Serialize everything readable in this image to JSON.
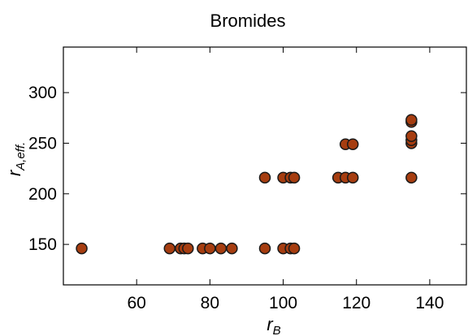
{
  "chart_data": {
    "type": "scatter",
    "title": "Bromides",
    "xlabel": "r_B",
    "xlabel_main": "r",
    "xlabel_sub": "B",
    "ylabel": "r_A,eff.",
    "ylabel_main": "r",
    "ylabel_sub": "A,eff.",
    "xlim": [
      40,
      150
    ],
    "ylim": [
      110,
      345
    ],
    "xticks": [
      60,
      80,
      100,
      120,
      140
    ],
    "yticks": [
      150,
      200,
      250,
      300
    ],
    "xtick_labels": [
      "60",
      "80",
      "100",
      "120",
      "140"
    ],
    "ytick_labels": [
      "150",
      "200",
      "250",
      "300"
    ],
    "grid": false,
    "legend": "none",
    "marker_color": "#A63D10",
    "marker_edge": "#1a1a1a",
    "points": [
      {
        "x": 45,
        "y": 146
      },
      {
        "x": 69,
        "y": 146
      },
      {
        "x": 72,
        "y": 146
      },
      {
        "x": 73,
        "y": 146
      },
      {
        "x": 74,
        "y": 146
      },
      {
        "x": 78,
        "y": 146
      },
      {
        "x": 80,
        "y": 146
      },
      {
        "x": 83,
        "y": 146
      },
      {
        "x": 86,
        "y": 146
      },
      {
        "x": 95,
        "y": 146
      },
      {
        "x": 100,
        "y": 146
      },
      {
        "x": 102,
        "y": 146
      },
      {
        "x": 103,
        "y": 146
      },
      {
        "x": 95,
        "y": 216
      },
      {
        "x": 100,
        "y": 216
      },
      {
        "x": 102,
        "y": 216
      },
      {
        "x": 103,
        "y": 216
      },
      {
        "x": 115,
        "y": 216
      },
      {
        "x": 117,
        "y": 216
      },
      {
        "x": 119,
        "y": 216
      },
      {
        "x": 117,
        "y": 249
      },
      {
        "x": 119,
        "y": 249
      },
      {
        "x": 135,
        "y": 216
      },
      {
        "x": 135,
        "y": 250
      },
      {
        "x": 135,
        "y": 253
      },
      {
        "x": 135,
        "y": 257
      },
      {
        "x": 135,
        "y": 271
      },
      {
        "x": 135,
        "y": 273
      }
    ]
  }
}
